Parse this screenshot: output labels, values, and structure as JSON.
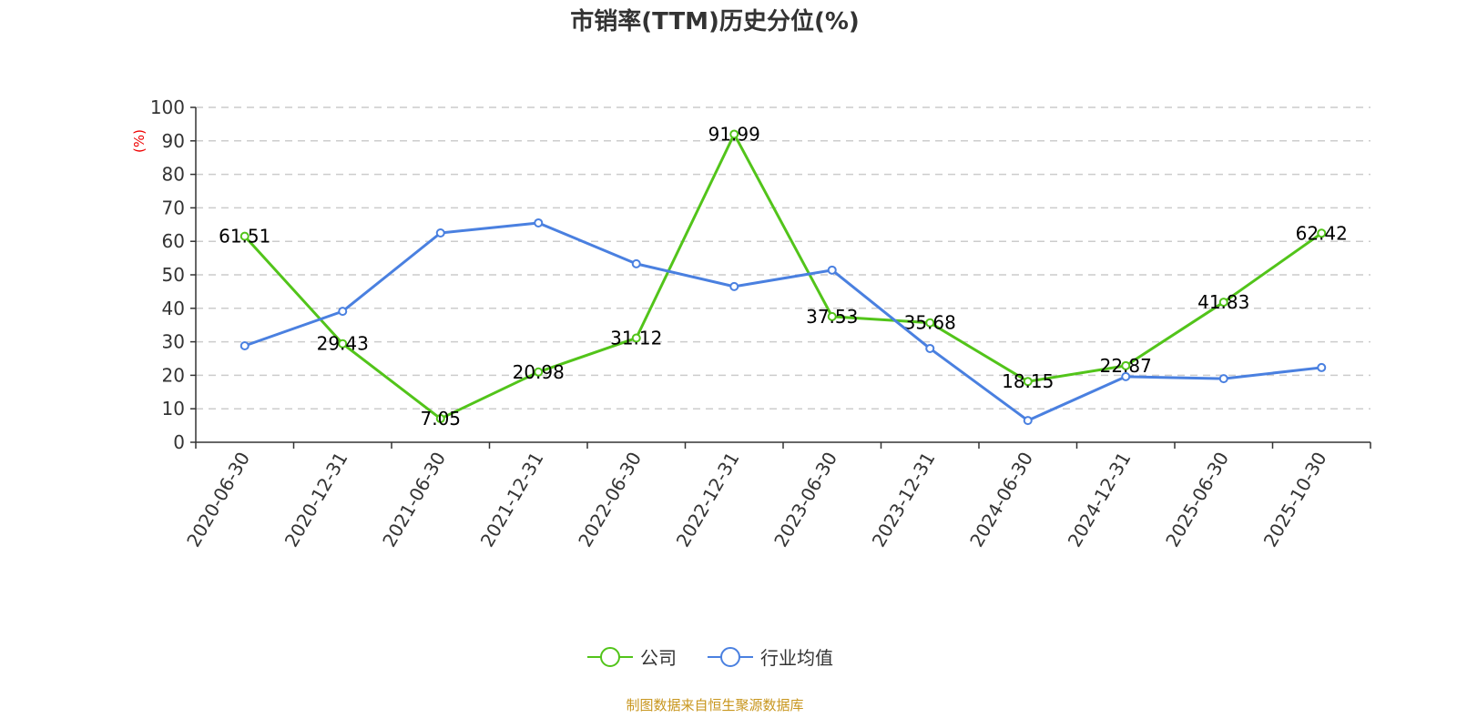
{
  "chart_data": {
    "type": "line",
    "title": "市销率(TTM)历史分位(%)",
    "ylabel": "(%)",
    "xlabel": "",
    "ylim": [
      0,
      100
    ],
    "yticks": [
      0,
      10,
      20,
      30,
      40,
      50,
      60,
      70,
      80,
      90,
      100
    ],
    "grid": true,
    "legend_position": "bottom",
    "categories": [
      "2020-06-30",
      "2020-12-31",
      "2021-06-30",
      "2021-12-31",
      "2022-06-30",
      "2022-12-31",
      "2023-06-30",
      "2023-12-31",
      "2024-06-30",
      "2024-12-31",
      "2025-06-30",
      "2025-10-30"
    ],
    "series": [
      {
        "name": "公司",
        "color": "#52c41a",
        "labels": true,
        "values": [
          61.51,
          29.43,
          7.05,
          20.98,
          31.12,
          91.99,
          37.53,
          35.68,
          18.15,
          22.87,
          41.83,
          62.42
        ]
      },
      {
        "name": "行业均值",
        "color": "#4a80e0",
        "labels": false,
        "values": [
          28.8,
          39.1,
          62.5,
          65.5,
          53.3,
          46.5,
          51.4,
          28.0,
          6.5,
          19.6,
          19.0,
          22.3
        ]
      }
    ],
    "source": "制图数据来自恒生聚源数据库"
  }
}
